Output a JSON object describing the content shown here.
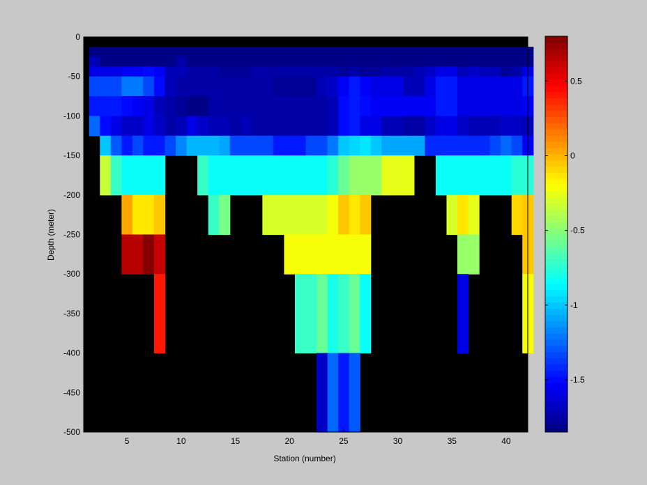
{
  "chart_data": {
    "type": "heatmap",
    "title": "",
    "xlabel": "Station (number)",
    "ylabel": "Depth (meter)",
    "xlim": [
      1,
      42
    ],
    "ylim": [
      -500,
      0
    ],
    "x_ticks": [
      5,
      10,
      15,
      20,
      25,
      30,
      35,
      40
    ],
    "y_ticks": [
      0,
      -50,
      -100,
      -150,
      -200,
      -250,
      -300,
      -350,
      -400,
      -450,
      -500
    ],
    "colorbar": {
      "colormap": "jet",
      "range": [
        -1.85,
        0.8
      ],
      "ticks": [
        0.5,
        0,
        -0.5,
        -1,
        -1.5
      ]
    },
    "no_data_color": "#000000",
    "background_color": "#c8c8c8",
    "cell_height_m": 25,
    "stations": [
      2,
      3,
      4,
      5,
      6,
      7,
      8,
      9,
      10,
      11,
      12,
      13,
      14,
      15,
      16,
      17,
      18,
      19,
      20,
      21,
      22,
      23,
      24,
      25,
      26,
      27,
      28,
      29,
      30,
      31,
      32,
      33,
      34,
      35,
      36,
      37,
      38,
      39,
      40,
      41,
      42
    ],
    "depth_bins": [
      [
        -12.5,
        -25
      ],
      [
        -25,
        -37.5
      ],
      [
        -37.5,
        -50
      ],
      [
        -50,
        -75
      ],
      [
        -75,
        -100
      ],
      [
        -100,
        -125
      ],
      [
        -125,
        -150
      ],
      [
        -150,
        -200
      ],
      [
        -200,
        -250
      ],
      [
        -250,
        -300
      ],
      [
        -300,
        -400
      ],
      [
        -400,
        -500
      ]
    ],
    "values": [
      [
        -1.85,
        -1.85,
        -1.85,
        -1.85,
        -1.85,
        -1.85,
        -1.85,
        -1.85,
        -1.85,
        -1.85,
        -1.85,
        -1.85,
        -1.85,
        -1.85,
        -1.85,
        -1.85,
        -1.85,
        -1.85,
        -1.85,
        -1.85,
        -1.85,
        -1.85,
        -1.85,
        -1.85,
        -1.85,
        -1.85,
        -1.85,
        -1.85,
        -1.85,
        -1.85,
        -1.85,
        -1.85,
        -1.85,
        -1.85,
        -1.85,
        -1.85,
        -1.85,
        -1.85,
        -1.85,
        -1.85,
        -1.85
      ],
      [
        -1.7,
        -1.85,
        -1.85,
        -1.85,
        -1.85,
        -1.85,
        -1.85,
        -1.85,
        -1.75,
        -1.85,
        -1.85,
        -1.85,
        -1.85,
        -1.85,
        -1.85,
        -1.85,
        -1.85,
        -1.85,
        -1.85,
        -1.85,
        -1.85,
        -1.85,
        -1.85,
        -1.85,
        -1.85,
        -1.85,
        -1.85,
        -1.85,
        -1.85,
        -1.85,
        -1.85,
        -1.85,
        -1.85,
        -1.85,
        -1.85,
        -1.85,
        -1.85,
        -1.85,
        -1.85,
        -1.85,
        -1.85
      ],
      [
        -1.6,
        -1.6,
        -1.6,
        -1.55,
        -1.55,
        -1.5,
        -1.55,
        -1.7,
        -1.7,
        -1.75,
        -1.75,
        -1.75,
        -1.8,
        -1.8,
        -1.8,
        -1.75,
        -1.75,
        -1.75,
        -1.75,
        -1.75,
        -1.75,
        -1.75,
        -1.75,
        -1.8,
        -1.75,
        -1.8,
        -1.8,
        -1.75,
        -1.75,
        -1.75,
        -1.7,
        -1.65,
        -1.6,
        -1.6,
        -1.7,
        -1.65,
        -1.7,
        -1.7,
        -1.8,
        -1.75,
        -1.6
      ],
      [
        -1.35,
        -1.35,
        -1.35,
        -1.2,
        -1.2,
        -1.35,
        -1.5,
        -1.7,
        -1.75,
        -1.75,
        -1.75,
        -1.75,
        -1.75,
        -1.75,
        -1.75,
        -1.75,
        -1.75,
        -1.8,
        -1.8,
        -1.8,
        -1.8,
        -1.7,
        -1.65,
        -1.55,
        -1.45,
        -1.55,
        -1.6,
        -1.6,
        -1.6,
        -1.7,
        -1.7,
        -1.6,
        -1.45,
        -1.45,
        -1.6,
        -1.6,
        -1.6,
        -1.6,
        -1.6,
        -1.6,
        -1.45
      ],
      [
        -1.45,
        -1.45,
        -1.45,
        -1.5,
        -1.55,
        -1.6,
        -1.7,
        -1.75,
        -1.8,
        -1.85,
        -1.85,
        -1.75,
        -1.75,
        -1.75,
        -1.75,
        -1.75,
        -1.75,
        -1.75,
        -1.75,
        -1.75,
        -1.75,
        -1.75,
        -1.7,
        -1.5,
        -1.45,
        -1.5,
        -1.55,
        -1.55,
        -1.55,
        -1.55,
        -1.55,
        -1.55,
        -1.45,
        -1.45,
        -1.6,
        -1.6,
        -1.6,
        -1.6,
        -1.6,
        -1.6,
        -1.55
      ],
      [
        -1.25,
        -1.5,
        -1.6,
        -1.65,
        -1.65,
        -1.6,
        -1.65,
        -1.75,
        -1.7,
        -1.6,
        -1.65,
        -1.7,
        -1.7,
        -1.75,
        -1.7,
        -1.75,
        -1.75,
        -1.75,
        -1.75,
        -1.75,
        -1.75,
        -1.75,
        -1.7,
        -1.5,
        -1.45,
        -1.6,
        -1.6,
        -1.7,
        -1.7,
        -1.75,
        -1.75,
        -1.65,
        -1.6,
        -1.6,
        -1.65,
        -1.7,
        -1.7,
        -1.7,
        -1.65,
        -1.65,
        -1.7
      ],
      [
        null,
        -1.0,
        -1.3,
        -1.45,
        -1.35,
        -1.45,
        -1.45,
        -1.35,
        -1.15,
        -1.05,
        -1.05,
        -1.05,
        -1.1,
        -1.35,
        -1.35,
        -1.35,
        -1.35,
        -1.45,
        -1.45,
        -1.45,
        -1.35,
        -1.35,
        -1.2,
        -1.0,
        -0.95,
        -0.9,
        -1.0,
        -1.1,
        -1.1,
        -1.1,
        -1.1,
        -1.4,
        -1.4,
        -1.4,
        -1.4,
        -1.4,
        -1.4,
        -1.35,
        -1.25,
        -1.35,
        -1.55
      ],
      [
        null,
        -0.35,
        -0.7,
        -0.85,
        -0.85,
        -0.85,
        -0.85,
        null,
        null,
        null,
        -0.7,
        -0.85,
        -0.85,
        -0.85,
        -0.85,
        -0.85,
        -0.85,
        -0.85,
        -0.85,
        -0.85,
        -0.85,
        -0.85,
        -0.75,
        -0.6,
        -0.45,
        -0.45,
        -0.45,
        -0.25,
        -0.25,
        -0.25,
        null,
        null,
        -0.85,
        -0.85,
        -0.85,
        -0.85,
        -0.85,
        -0.85,
        -0.85,
        -0.75,
        -0.75
      ],
      [
        null,
        null,
        null,
        0.05,
        -0.15,
        -0.15,
        -0.05,
        null,
        null,
        null,
        null,
        -0.7,
        -0.55,
        null,
        null,
        null,
        -0.3,
        -0.3,
        -0.3,
        -0.3,
        -0.3,
        -0.3,
        -0.2,
        -0.05,
        -0.15,
        -0.05,
        null,
        null,
        null,
        null,
        null,
        null,
        null,
        -0.3,
        -0.15,
        -0.25,
        null,
        null,
        null,
        -0.1,
        -0.05
      ],
      [
        null,
        null,
        null,
        0.65,
        0.65,
        0.78,
        0.6,
        null,
        null,
        null,
        null,
        null,
        null,
        null,
        null,
        null,
        null,
        null,
        -0.2,
        -0.2,
        -0.2,
        -0.2,
        -0.2,
        -0.2,
        -0.2,
        -0.2,
        null,
        null,
        null,
        null,
        null,
        null,
        null,
        null,
        -0.45,
        -0.45,
        null,
        null,
        null,
        null,
        -0.05
      ],
      [
        null,
        null,
        null,
        null,
        null,
        null,
        0.4,
        null,
        null,
        null,
        null,
        null,
        null,
        null,
        null,
        null,
        null,
        null,
        null,
        -0.7,
        -0.7,
        -0.6,
        -0.8,
        -0.7,
        -0.6,
        -0.85,
        null,
        null,
        null,
        null,
        null,
        null,
        null,
        null,
        -1.6,
        null,
        null,
        null,
        null,
        null,
        -0.2
      ],
      [
        null,
        null,
        null,
        null,
        null,
        null,
        null,
        null,
        null,
        null,
        null,
        null,
        null,
        null,
        null,
        null,
        null,
        null,
        null,
        null,
        null,
        -1.65,
        -1.25,
        -1.45,
        -1.3,
        null,
        null,
        null,
        null,
        null,
        null,
        null,
        null,
        null,
        null,
        null,
        null,
        null,
        null,
        null,
        null
      ]
    ]
  }
}
